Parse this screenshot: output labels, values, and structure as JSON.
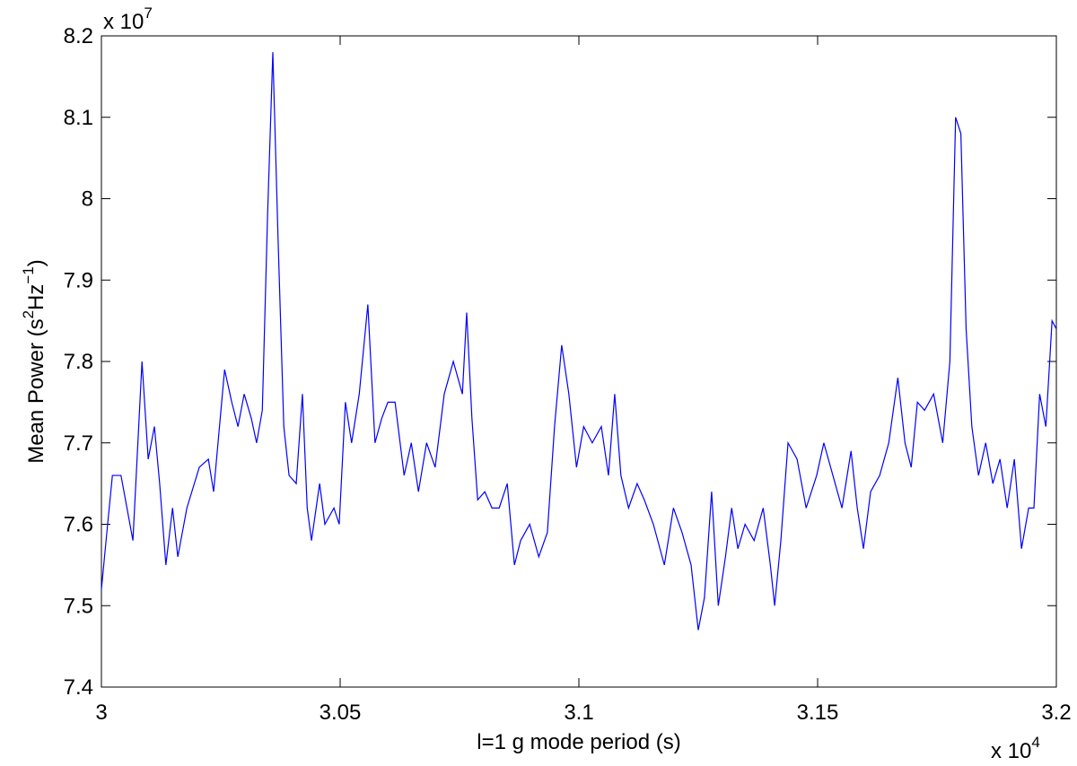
{
  "chart_data": {
    "type": "line",
    "xlabel": "l=1 g mode period (s)",
    "ylabel": [
      "Mean Power (s",
      "2",
      "Hz",
      "−1",
      ")"
    ],
    "x_multiplier": {
      "base": "x 10",
      "exponent": "4"
    },
    "y_multiplier": {
      "base": "x 10",
      "exponent": "7"
    },
    "xlim": [
      30000,
      32000
    ],
    "ylim": [
      74000000,
      82000000
    ],
    "xticks": [
      {
        "value": 30000,
        "label": "3"
      },
      {
        "value": 30500,
        "label": "3.05"
      },
      {
        "value": 31000,
        "label": "3.1"
      },
      {
        "value": 31500,
        "label": "3.15"
      },
      {
        "value": 32000,
        "label": "3.2"
      }
    ],
    "yticks": [
      {
        "value": 74000000,
        "label": "7.4"
      },
      {
        "value": 75000000,
        "label": "7.5"
      },
      {
        "value": 76000000,
        "label": "7.6"
      },
      {
        "value": 77000000,
        "label": "7.7"
      },
      {
        "value": 78000000,
        "label": "7.8"
      },
      {
        "value": 79000000,
        "label": "7.9"
      },
      {
        "value": 80000000,
        "label": "8"
      },
      {
        "value": 81000000,
        "label": "8.1"
      },
      {
        "value": 82000000,
        "label": "8.2"
      }
    ],
    "grid": false,
    "x": [
      30000,
      30013,
      30023,
      30041,
      30066,
      30085,
      30098,
      30111,
      30122,
      30135,
      30149,
      30160,
      30179,
      30205,
      30224,
      30235,
      30258,
      30273,
      30286,
      30299,
      30314,
      30325,
      30337,
      30348,
      30359,
      30370,
      30382,
      30393,
      30408,
      30421,
      30431,
      30440,
      30457,
      30468,
      30487,
      30498,
      30511,
      30524,
      30540,
      30558,
      30573,
      30587,
      30600,
      30615,
      30634,
      30649,
      30664,
      30681,
      30699,
      30718,
      30737,
      30756,
      30765,
      30776,
      30788,
      30803,
      30818,
      30833,
      30850,
      30865,
      30878,
      30897,
      30916,
      30934,
      30949,
      30964,
      30979,
      30995,
      31010,
      31028,
      31047,
      31062,
      31075,
      31088,
      31104,
      31122,
      31137,
      31156,
      31179,
      31198,
      31216,
      31235,
      31250,
      31263,
      31278,
      31292,
      31307,
      31320,
      31333,
      31348,
      31367,
      31386,
      31401,
      31410,
      31423,
      31438,
      31457,
      31476,
      31498,
      31513,
      31532,
      31551,
      31570,
      31583,
      31596,
      31611,
      31630,
      31649,
      31668,
      31683,
      31696,
      31709,
      31724,
      31743,
      31762,
      31777,
      31789,
      31800,
      31811,
      31823,
      31837,
      31852,
      31867,
      31882,
      31897,
      31912,
      31927,
      31942,
      31953,
      31965,
      31978,
      31991,
      32000
    ],
    "series": [
      {
        "color": "#0000ff",
        "values": [
          75200000,
          76000000,
          76600000,
          76600000,
          75800000,
          78000000,
          76800000,
          77200000,
          76500000,
          75500000,
          76200000,
          75600000,
          76200000,
          76700000,
          76800000,
          76400000,
          77900000,
          77500000,
          77200000,
          77600000,
          77300000,
          77000000,
          77400000,
          79800000,
          81800000,
          79500000,
          77200000,
          76600000,
          76500000,
          77600000,
          76200000,
          75800000,
          76500000,
          76000000,
          76200000,
          76000000,
          77500000,
          77000000,
          77600000,
          78700000,
          77000000,
          77300000,
          77500000,
          77500000,
          76600000,
          77000000,
          76400000,
          77000000,
          76700000,
          77600000,
          78000000,
          77600000,
          78600000,
          77300000,
          76300000,
          76400000,
          76200000,
          76200000,
          76500000,
          75500000,
          75800000,
          76000000,
          75600000,
          75900000,
          77200000,
          78200000,
          77600000,
          76700000,
          77200000,
          77000000,
          77200000,
          76600000,
          77600000,
          76600000,
          76200000,
          76500000,
          76300000,
          76000000,
          75500000,
          76200000,
          75900000,
          75500000,
          74700000,
          75100000,
          76400000,
          75000000,
          75600000,
          76200000,
          75700000,
          76000000,
          75800000,
          76200000,
          75500000,
          75000000,
          75800000,
          77000000,
          76800000,
          76200000,
          76600000,
          77000000,
          76600000,
          76200000,
          76900000,
          76200000,
          75700000,
          76400000,
          76600000,
          77000000,
          77800000,
          77000000,
          76700000,
          77500000,
          77400000,
          77600000,
          77000000,
          78000000,
          81000000,
          80800000,
          78400000,
          77200000,
          76600000,
          77000000,
          76500000,
          76800000,
          76200000,
          76800000,
          75700000,
          76200000,
          76200000,
          77600000,
          77200000,
          78500000,
          78400000
        ]
      }
    ]
  }
}
